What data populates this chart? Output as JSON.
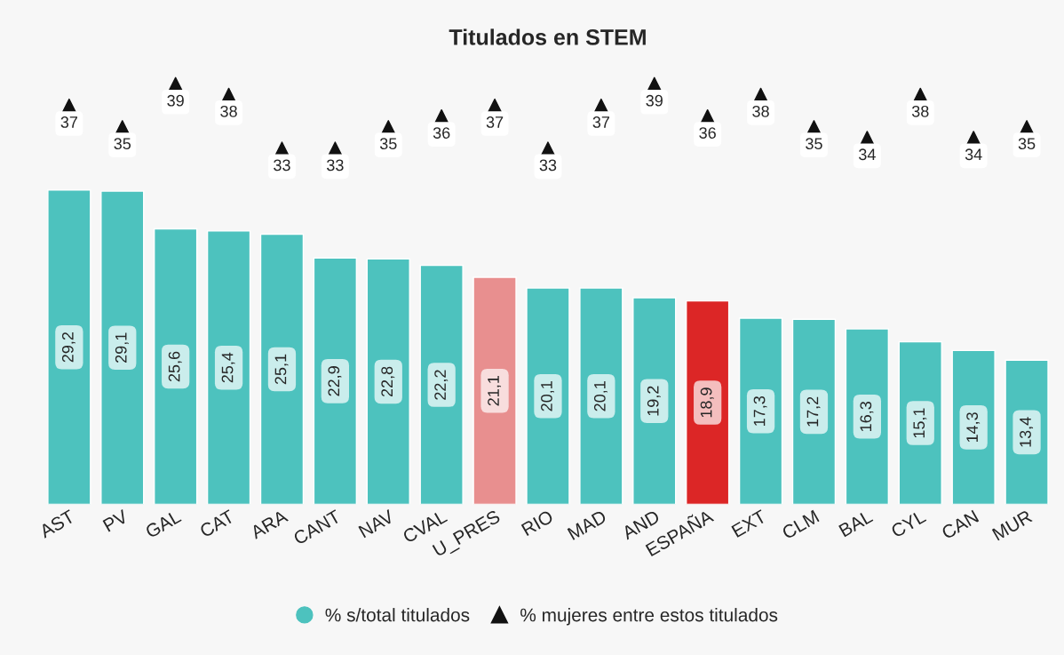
{
  "chart_data": {
    "type": "bar",
    "title": "Titulados en STEM",
    "categories": [
      "AST",
      "PV",
      "GAL",
      "CAT",
      "ARA",
      "CANT",
      "NAV",
      "CVAL",
      "U_PRES",
      "RIO",
      "MAD",
      "AND",
      "ESPAÑA",
      "EXT",
      "CLM",
      "BAL",
      "CYL",
      "CAN",
      "MUR"
    ],
    "series": [
      {
        "name": "% s/total titulados",
        "color": "#4dc2be",
        "colors": [
          "#4dc2be",
          "#4dc2be",
          "#4dc2be",
          "#4dc2be",
          "#4dc2be",
          "#4dc2be",
          "#4dc2be",
          "#4dc2be",
          "#e88f8f",
          "#4dc2be",
          "#4dc2be",
          "#4dc2be",
          "#dc2626",
          "#4dc2be",
          "#4dc2be",
          "#4dc2be",
          "#4dc2be",
          "#4dc2be",
          "#4dc2be"
        ],
        "values": [
          29.2,
          29.1,
          25.6,
          25.4,
          25.1,
          22.9,
          22.8,
          22.2,
          21.1,
          20.1,
          20.1,
          19.2,
          18.9,
          17.3,
          17.2,
          16.3,
          15.1,
          14.3,
          13.4
        ],
        "value_labels": [
          "29,2",
          "29,1",
          "25,6",
          "25,4",
          "25,1",
          "22,9",
          "22,8",
          "22,2",
          "21,1",
          "20,1",
          "20,1",
          "19,2",
          "18,9",
          "17,3",
          "17,2",
          "16,3",
          "15,1",
          "14,3",
          "13,4"
        ]
      },
      {
        "name": "% mujeres entre estos titulados",
        "type": "scatter",
        "marker": "triangle",
        "color": "#111111",
        "values": [
          37,
          35,
          39,
          38,
          33,
          33,
          35,
          36,
          37,
          33,
          37,
          39,
          36,
          38,
          35,
          34,
          38,
          34,
          35
        ],
        "value_labels": [
          "37",
          "35",
          "39",
          "38",
          "33",
          "33",
          "35",
          "36",
          "37",
          "33",
          "37",
          "39",
          "36",
          "38",
          "35",
          "34",
          "38",
          "34",
          "35"
        ]
      }
    ],
    "tick_labels": "x",
    "grid": false,
    "legend": "bottom"
  }
}
